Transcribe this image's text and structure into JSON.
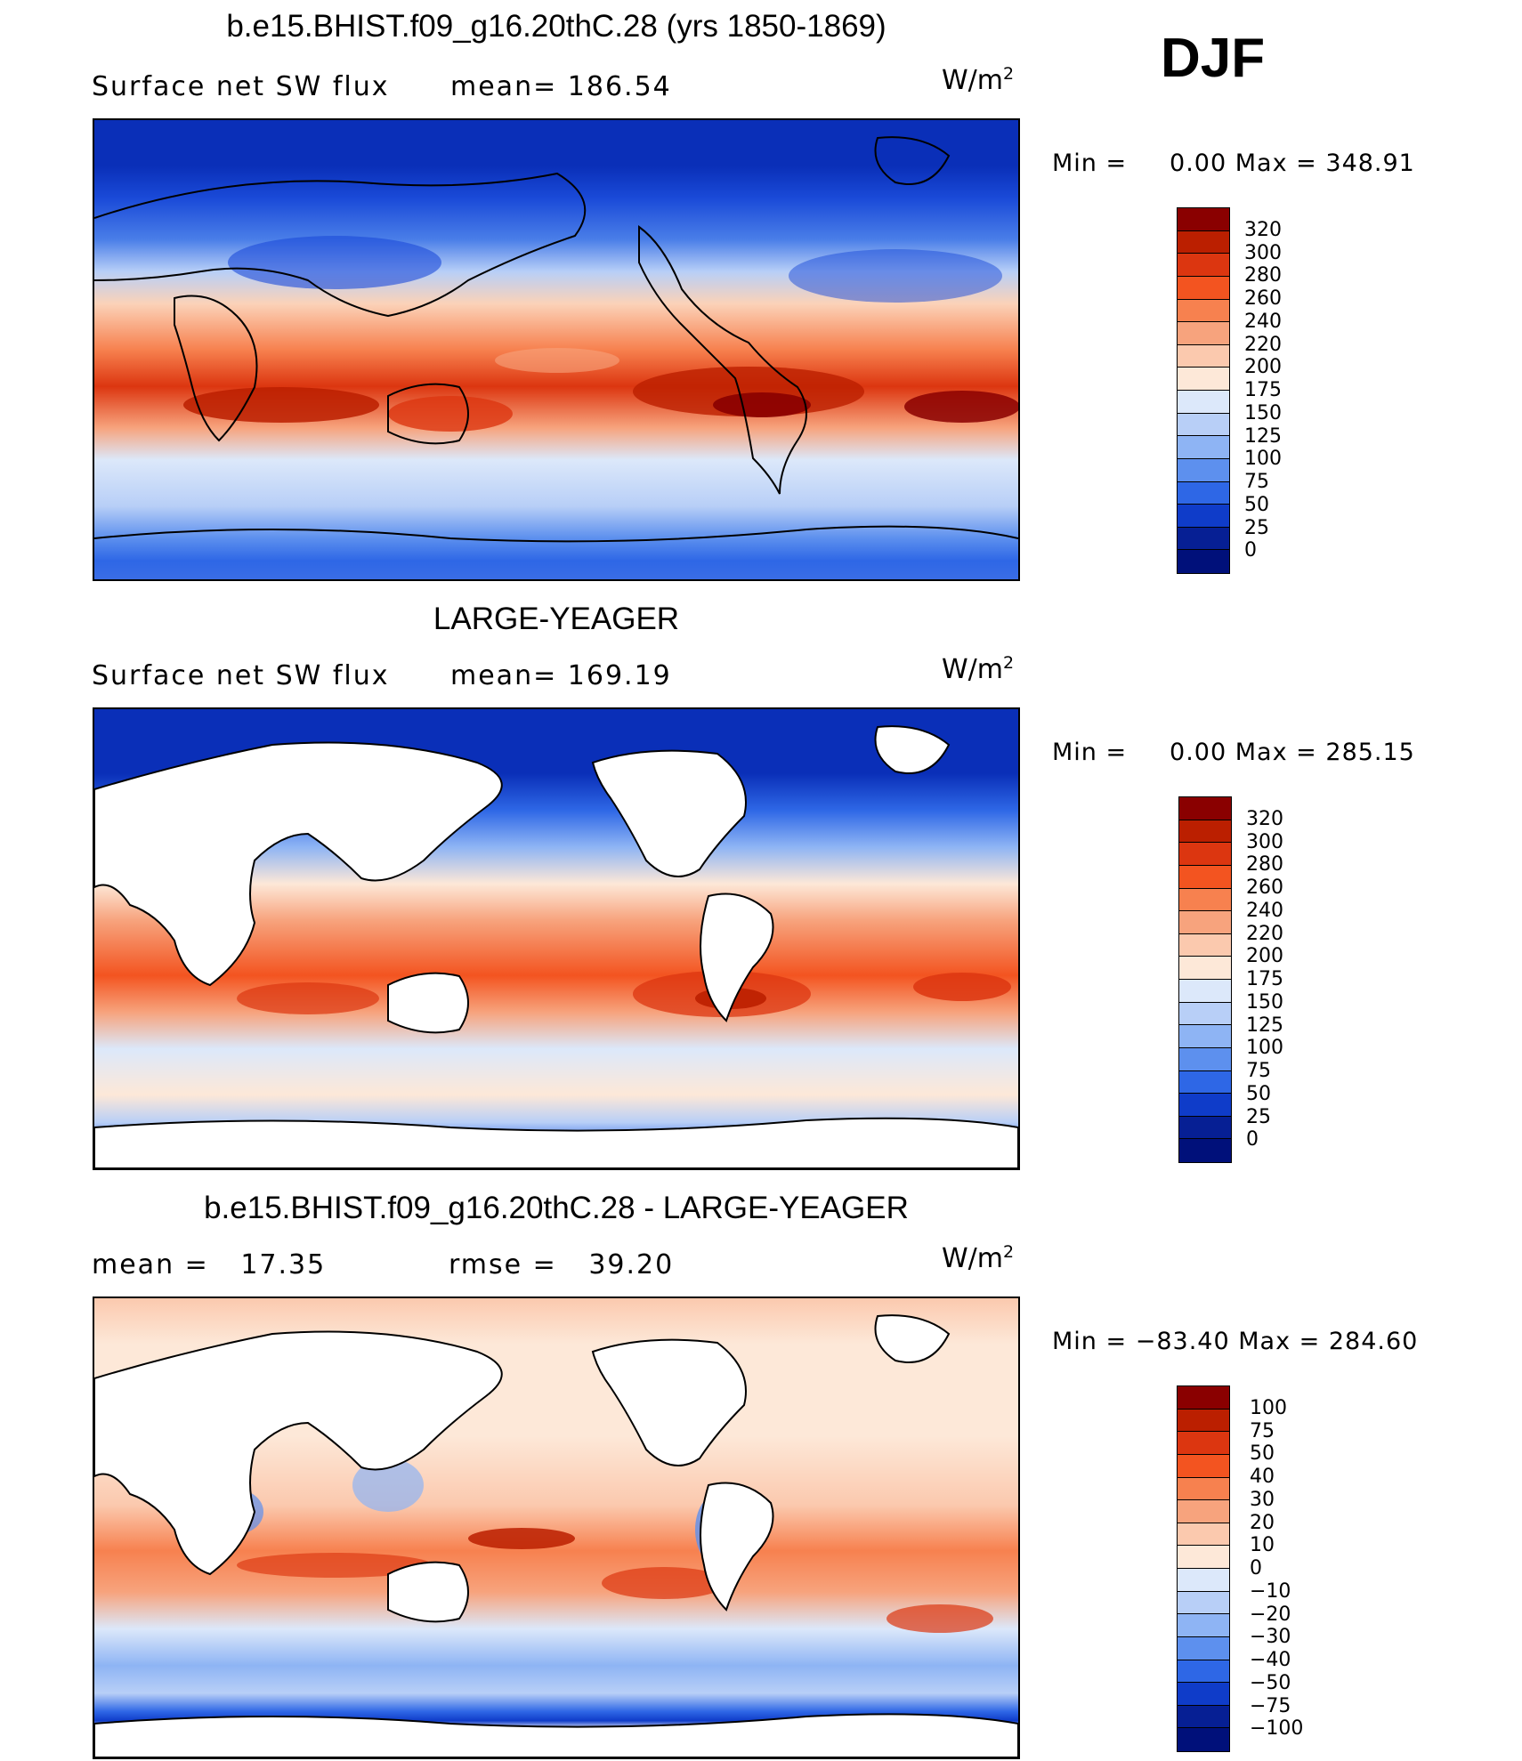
{
  "season": "DJF",
  "units_main": "W/m",
  "units_sup": "2",
  "panels": [
    {
      "title": "b.e15.BHIST.f09_g16.20thC.28 (yrs 1850-1869)",
      "left_label": "Surface net SW flux",
      "mean_label": "mean=",
      "mean_value": "186.54",
      "min_label": "Min =",
      "min_value": "0.00",
      "max_label": "Max =",
      "max_value": "348.91",
      "levels": [
        "320",
        "300",
        "280",
        "260",
        "240",
        "220",
        "200",
        "175",
        "150",
        "125",
        "100",
        "75",
        "50",
        "25",
        "0"
      ],
      "kind": "full"
    },
    {
      "title": "LARGE-YEAGER",
      "left_label": "Surface net SW flux",
      "mean_label": "mean=",
      "mean_value": "169.19",
      "min_label": "Min =",
      "min_value": "0.00",
      "max_label": "Max =",
      "max_value": "285.15",
      "levels": [
        "320",
        "300",
        "280",
        "260",
        "240",
        "220",
        "200",
        "175",
        "150",
        "125",
        "100",
        "75",
        "50",
        "25",
        "0"
      ],
      "kind": "ocean"
    },
    {
      "title": "b.e15.BHIST.f09_g16.20thC.28 - LARGE-YEAGER",
      "left_label": "mean =",
      "left_value": "17.35",
      "mid_label": "rmse =",
      "mid_value": "39.20",
      "min_label": "Min =",
      "min_value": "−83.40",
      "max_label": "Max =",
      "max_value": "284.60",
      "levels": [
        "100",
        "75",
        "50",
        "40",
        "30",
        "20",
        "10",
        "0",
        "−10",
        "−20",
        "−30",
        "−40",
        "−50",
        "−75",
        "−100"
      ],
      "kind": "diff"
    }
  ],
  "colorbar_colors": [
    "#8a0000",
    "#bb1f00",
    "#dc3610",
    "#f35420",
    "#f7814f",
    "#f7a37d",
    "#fbc9ae",
    "#fde8d8",
    "#dce8fa",
    "#b8cff7",
    "#8eb4f4",
    "#5d90ee",
    "#2e67e6",
    "#0f3cc9",
    "#061f94",
    "#00107a"
  ]
}
